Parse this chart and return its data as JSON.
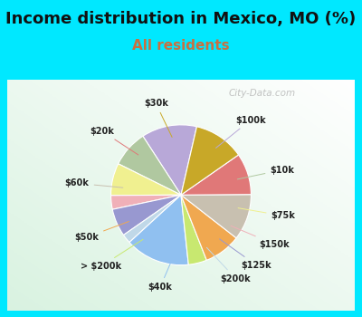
{
  "title": "Income distribution in Mexico, MO (%)",
  "subtitle": "All residents",
  "watermark": "City-Data.com",
  "labels": [
    "$100k",
    "$10k",
    "$75k",
    "$150k",
    "$125k",
    "$200k",
    "$40k",
    "> $200k",
    "$50k",
    "$60k",
    "$20k",
    "$30k"
  ],
  "sizes": [
    12,
    8,
    7,
    3,
    6,
    2,
    14,
    4,
    8,
    10,
    9,
    11
  ],
  "colors": [
    "#b8a8d8",
    "#b0c8a0",
    "#f0f090",
    "#f0b0b8",
    "#9898d0",
    "#c0d8e8",
    "#90c0f0",
    "#c8e870",
    "#f0a850",
    "#c8c0b0",
    "#e07878",
    "#c8a828"
  ],
  "bg_color_tl": "#d0f0e0",
  "bg_color_br": "#e8f8f0",
  "outer_bg": "#00e8ff",
  "title_fontsize": 13,
  "subtitle_fontsize": 11,
  "subtitle_color": "#c87040",
  "startangle": 77
}
